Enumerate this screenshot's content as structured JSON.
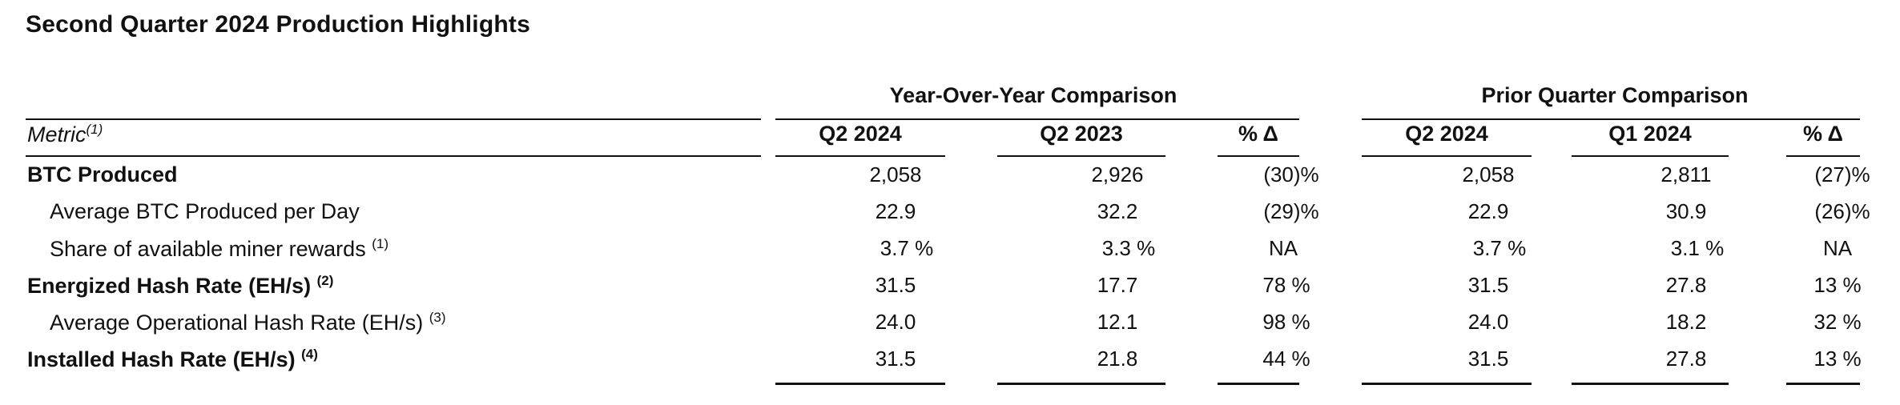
{
  "title": "Second Quarter 2024 Production Highlights",
  "groups": {
    "yoy": "Year-Over-Year Comparison",
    "prior": "Prior Quarter Comparison"
  },
  "columns": {
    "metric": "Metric",
    "metric_sup": "(1)",
    "yoy_current": "Q2 2024",
    "yoy_prior": "Q2 2023",
    "yoy_change": "% Δ",
    "pq_current": "Q2 2024",
    "pq_prior": "Q1 2024",
    "pq_change": "% Δ"
  },
  "rows": [
    {
      "label": "BTC Produced",
      "sup": "",
      "yoy_current": "2,058",
      "yoy_prior": "2,926",
      "yoy_change": "(30)%",
      "pq_current": "2,058",
      "pq_prior": "2,811",
      "pq_change": "(27)%"
    },
    {
      "label": "Average BTC Produced per Day",
      "sup": "",
      "yoy_current": "22.9",
      "yoy_prior": "32.2",
      "yoy_change": "(29)%",
      "pq_current": "22.9",
      "pq_prior": "30.9",
      "pq_change": "(26)%"
    },
    {
      "label": "Share of available miner rewards",
      "sup": "(1)",
      "yoy_current": "3.7 %",
      "yoy_prior": "3.3 %",
      "yoy_change": "NA",
      "pq_current": "3.7 %",
      "pq_prior": "3.1 %",
      "pq_change": "NA"
    },
    {
      "label": "Energized Hash Rate (EH/s)",
      "sup": "(2)",
      "yoy_current": "31.5",
      "yoy_prior": "17.7",
      "yoy_change": "78 %",
      "pq_current": "31.5",
      "pq_prior": "27.8",
      "pq_change": "13 %"
    },
    {
      "label": "Average Operational Hash Rate (EH/s)",
      "sup": "(3)",
      "yoy_current": "24.0",
      "yoy_prior": "12.1",
      "yoy_change": "98 %",
      "pq_current": "24.0",
      "pq_prior": "18.2",
      "pq_change": "32 %"
    },
    {
      "label": "Installed Hash Rate (EH/s)",
      "sup": "(4)",
      "yoy_current": "31.5",
      "yoy_prior": "21.8",
      "yoy_change": "44 %",
      "pq_current": "31.5",
      "pq_prior": "27.8",
      "pq_change": "13 %"
    }
  ]
}
